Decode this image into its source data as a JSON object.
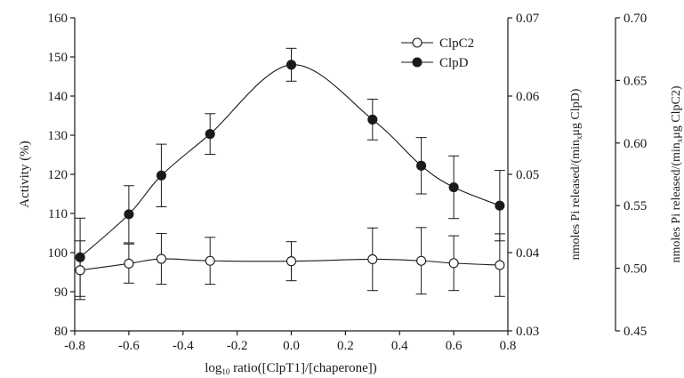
{
  "chart_data": {
    "type": "line",
    "xlabel": "log10 ratio([ClpT1]/[chaperone])",
    "xlabel_parts": {
      "base": "log",
      "sub": "10",
      "rest": " ratio([ClpT1]/[chaperone])"
    },
    "x_ticks": [
      "-0.8",
      "-0.6",
      "-0.4",
      "-0.2",
      "0.0",
      "0.2",
      "0.4",
      "0.6",
      "0.8"
    ],
    "xlim": [
      -0.8,
      0.8
    ],
    "y_left": {
      "label": "Activity (%)",
      "ylim": [
        80,
        160
      ],
      "ticks": [
        "80",
        "90",
        "100",
        "110",
        "120",
        "130",
        "140",
        "150",
        "160"
      ]
    },
    "y_right1": {
      "label": "nmoles Pi released/(minₓμg ClpD)",
      "label_parts": {
        "pre": "nmoles Pi released/(min",
        "sub": "x",
        "post": "μg ClpD)"
      },
      "ylim": [
        0.03,
        0.07
      ],
      "ticks": [
        "0.03",
        "0.04",
        "0.05",
        "0.06",
        "0.07"
      ]
    },
    "y_right2": {
      "label": "nmoles Pi released/(minₓμg ClpC2)",
      "label_parts": {
        "pre": "nmoles Pi released/(min",
        "sub": "x",
        "post": "μg ClpC2)"
      },
      "ylim": [
        0.45,
        0.7
      ],
      "ticks": [
        "0.45",
        "0.50",
        "0.55",
        "0.60",
        "0.65",
        "0.70"
      ]
    },
    "legend_position": "top-right",
    "grid": false,
    "series": [
      {
        "name": "ClpC2",
        "marker": "open-circle",
        "x": [
          -0.78,
          -0.6,
          -0.48,
          -0.3,
          0.0,
          0.3,
          0.48,
          0.6,
          0.77
        ],
        "y": [
          95.5,
          97.2,
          98.4,
          97.9,
          97.8,
          98.3,
          97.9,
          97.3,
          96.8
        ],
        "err": [
          7.5,
          5.0,
          6.5,
          6.0,
          5.0,
          8.0,
          8.5,
          7.0,
          8.0
        ]
      },
      {
        "name": "ClpD",
        "marker": "filled-circle",
        "x": [
          -0.78,
          -0.6,
          -0.48,
          -0.3,
          0.0,
          0.3,
          0.48,
          0.6,
          0.77
        ],
        "y": [
          98.8,
          109.8,
          119.7,
          130.3,
          148.0,
          134.0,
          122.2,
          116.7,
          112.0
        ],
        "err": [
          10.0,
          7.3,
          8.0,
          5.2,
          4.2,
          5.2,
          7.2,
          8.0,
          9.0
        ]
      }
    ]
  }
}
